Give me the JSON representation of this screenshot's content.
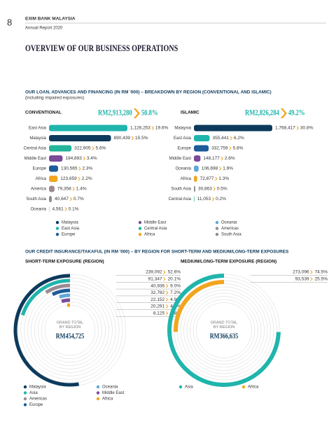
{
  "header": {
    "page_number": "8",
    "org": "EXIM BANK MALAYSIA",
    "report": "Annual Report 2020"
  },
  "page_title": "OVERVIEW OF OUR BUSINESS OPERATIONS",
  "sections": [
    {
      "title": "OUR LOAN, ADVANCES AND FINANCING (IN RM '000) – BREAKDOWN BY REGION (CONVENTIONAL AND ISLAMIC)",
      "note": "(including impaired exposures)",
      "legend": [
        {
          "name": "Malaysia",
          "color": "#0d3a5c"
        },
        {
          "name": "East Asia",
          "color": "#1fb5ac"
        },
        {
          "name": "Europe",
          "color": "#1d5b9a"
        },
        {
          "name": "Middle East",
          "color": "#7b4b9a"
        },
        {
          "name": "Central Asia",
          "color": "#22b59a"
        },
        {
          "name": "Africa",
          "color": "#f2a51f"
        },
        {
          "name": "Oceania",
          "color": "#5fa8d9"
        },
        {
          "name": "Americas",
          "color": "#9b8a93"
        },
        {
          "name": "South Asia",
          "color": "#8c8c8c"
        }
      ]
    },
    {
      "title": "OUR CREDIT INSURANCE/TAKAFUL (IN RM '000) – BY REGION FOR SHORT-TERM AND MEDIUM/LONG-TERM EXPOSURES"
    }
  ],
  "chart_data": [
    {
      "type": "bar",
      "title": "CONVENTIONAL",
      "total_label": "RM2,913,280",
      "total_share_label": "50.8%",
      "categories": [
        "East Asia",
        "Malaysia",
        "Central Asia",
        "Middle East",
        "Europe",
        "Africa",
        "America",
        "South Asia",
        "Oceania"
      ],
      "values": [
        1126253,
        890439,
        322905,
        194893,
        130565,
        123659,
        79358,
        40647,
        4561
      ],
      "value_labels": [
        "1,126,253",
        "890,439",
        "322,905",
        "194,893",
        "130,565",
        "123,659",
        "79,358",
        "40,647",
        "4,561"
      ],
      "share_labels": [
        "19.6%",
        "15.5%",
        "5.6%",
        "3.4%",
        "2.3%",
        "2.2%",
        "1.4%",
        "0.7%",
        "0.1%"
      ],
      "colors": [
        "#1fb5ac",
        "#0d3a5c",
        "#22b59a",
        "#7b4b9a",
        "#1d5b9a",
        "#f2a51f",
        "#9b8a93",
        "#8c8c8c",
        "#5fa8d9"
      ]
    },
    {
      "type": "bar",
      "title": "ISLAMIC",
      "total_label": "RM2,826,284",
      "total_share_label": "49.2%",
      "categories": [
        "Malaysia",
        "East Asia",
        "Europe",
        "Middle East",
        "Oceania",
        "Africa",
        "South Asia",
        "Central Asia"
      ],
      "values": [
        1768417,
        355441,
        332759,
        148177,
        106698,
        72877,
        30863,
        11053
      ],
      "value_labels": [
        "1,768,417",
        "355,441",
        "332,759",
        "148,177",
        "106,698",
        "72,877",
        "30,863",
        "11,053"
      ],
      "share_labels": [
        "30.8%",
        "6.2%",
        "5.8%",
        "2.6%",
        "1.9%",
        "1.3%",
        "0.5%",
        "0.2%"
      ],
      "colors": [
        "#0d3a5c",
        "#1fb5ac",
        "#1d5b9a",
        "#7b4b9a",
        "#5fa8d9",
        "#f2a51f",
        "#8c8c8c",
        "#22b59a"
      ]
    },
    {
      "type": "radial_bar",
      "title": "SHORT-TERM EXPOSURE (REGION)",
      "center_label": [
        "GRAND TOTAL",
        "BY REGION"
      ],
      "total_label": "RM454,725",
      "categories": [
        "Malaysia",
        "Asia",
        "Americas",
        "Europe",
        "Oceania",
        "Middle East",
        "Africa"
      ],
      "values": [
        239092,
        91347,
        40936,
        32782,
        22152,
        20291,
        8125
      ],
      "value_labels": [
        "239,092",
        "91,347",
        "40,936",
        "32,782",
        "22,152",
        "20,291",
        "8,125"
      ],
      "share_labels": [
        "52.6%",
        "20.1%",
        "9.0%",
        "7.2%",
        "4.9%",
        "4.5%",
        "1.8%"
      ],
      "colors": [
        "#0d3a5c",
        "#1fb5ac",
        "#9b8a93",
        "#1d5b9a",
        "#5fa8d9",
        "#7b4b9a",
        "#f2a51f"
      ]
    },
    {
      "type": "radial_bar",
      "title": "MEDIUM/LONG-TERM EXPOSURE (REGION)",
      "center_label": [
        "GRAND TOTAL",
        "BY REGION"
      ],
      "total_label": "RM366,635",
      "categories": [
        "Asia",
        "Africa"
      ],
      "values": [
        273096,
        93539
      ],
      "value_labels": [
        "273,096",
        "93,539"
      ],
      "share_labels": [
        "74.5%",
        "25.5%"
      ],
      "colors": [
        "#1fb5ac",
        "#f2a51f"
      ]
    }
  ]
}
